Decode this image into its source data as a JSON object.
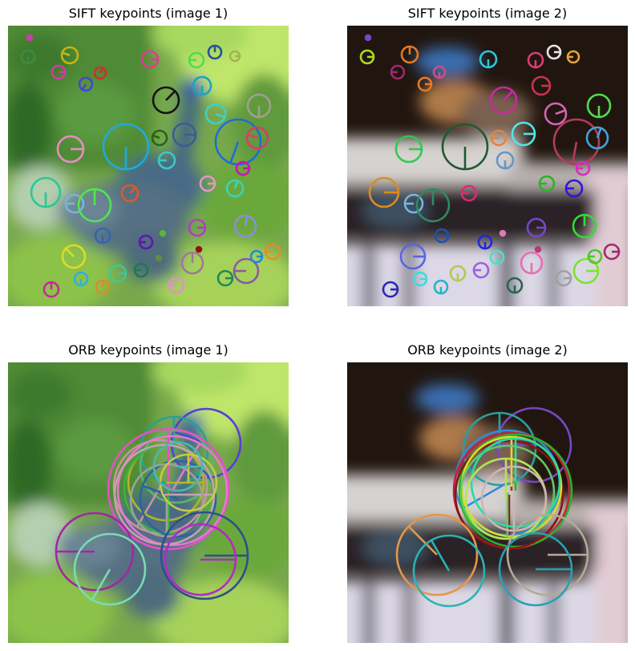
{
  "figure": {
    "panels": [
      {
        "title": "SIFT keypoints (image 1)"
      },
      {
        "title": "SIFT keypoints (image 2)"
      },
      {
        "title": "ORB keypoints (image 1)"
      },
      {
        "title": "ORB keypoints (image 2)"
      }
    ]
  },
  "colors": {
    "figure_background": "#ffffff",
    "title_text": "#000000"
  }
}
